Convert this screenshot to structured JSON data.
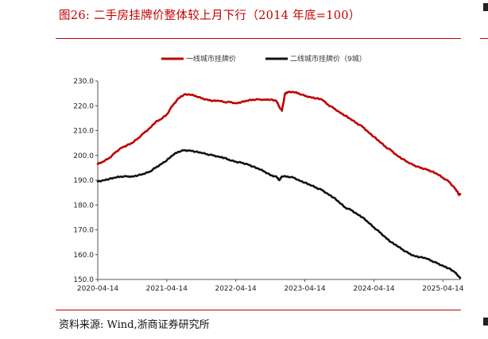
{
  "figure": {
    "title": "图26:    二手房挂牌价整体较上月下行（2014 年底=100）",
    "source": "资料来源:  Wind,浙商证券研究所"
  },
  "chart_data": {
    "type": "line",
    "title": "",
    "xlabel": "",
    "ylabel": "",
    "ylim": [
      150,
      230
    ],
    "yticks": [
      "150.0",
      "160.0",
      "170.0",
      "180.0",
      "190.0",
      "200.0",
      "210.0",
      "220.0",
      "230.0"
    ],
    "x_range": [
      "2020-04-14",
      "2025-07-14"
    ],
    "xticks": [
      "2020-04-14",
      "2021-04-14",
      "2022-04-14",
      "2023-04-14",
      "2024-04-14",
      "2025-04-14"
    ],
    "grid": false,
    "legend_position": "top",
    "series": [
      {
        "name": "一线城市挂牌价",
        "color": "#c00000",
        "points": [
          [
            "2020-04-14",
            196.5
          ],
          [
            "2020-05-14",
            197.5
          ],
          [
            "2020-06-14",
            199.0
          ],
          [
            "2020-07-14",
            201.0
          ],
          [
            "2020-08-14",
            203.0
          ],
          [
            "2020-09-14",
            204.0
          ],
          [
            "2020-10-14",
            205.0
          ],
          [
            "2020-11-14",
            207.0
          ],
          [
            "2020-12-14",
            209.0
          ],
          [
            "2021-01-14",
            211.0
          ],
          [
            "2021-02-14",
            213.5
          ],
          [
            "2021-03-14",
            214.5
          ],
          [
            "2021-04-14",
            216.5
          ],
          [
            "2021-05-14",
            220.0
          ],
          [
            "2021-06-14",
            223.0
          ],
          [
            "2021-07-14",
            224.5
          ],
          [
            "2021-08-14",
            224.5
          ],
          [
            "2021-09-14",
            224.0
          ],
          [
            "2021-10-14",
            223.0
          ],
          [
            "2021-11-14",
            222.5
          ],
          [
            "2021-12-14",
            222.0
          ],
          [
            "2022-01-14",
            222.0
          ],
          [
            "2022-02-14",
            221.5
          ],
          [
            "2022-03-14",
            221.5
          ],
          [
            "2022-04-14",
            221.0
          ],
          [
            "2022-05-14",
            221.5
          ],
          [
            "2022-06-14",
            222.0
          ],
          [
            "2022-07-14",
            222.5
          ],
          [
            "2022-08-14",
            222.5
          ],
          [
            "2022-09-14",
            222.5
          ],
          [
            "2022-10-14",
            222.5
          ],
          [
            "2022-11-14",
            222.0
          ],
          [
            "2022-12-01",
            219.5
          ],
          [
            "2022-12-14",
            218.0
          ],
          [
            "2022-12-31",
            225.0
          ],
          [
            "2023-01-14",
            225.5
          ],
          [
            "2023-02-14",
            225.5
          ],
          [
            "2023-03-14",
            225.0
          ],
          [
            "2023-04-14",
            224.0
          ],
          [
            "2023-05-14",
            223.5
          ],
          [
            "2023-06-14",
            223.0
          ],
          [
            "2023-07-14",
            222.5
          ],
          [
            "2023-08-14",
            220.5
          ],
          [
            "2023-09-14",
            219.0
          ],
          [
            "2023-10-14",
            217.5
          ],
          [
            "2023-11-14",
            216.0
          ],
          [
            "2023-12-14",
            214.5
          ],
          [
            "2024-01-14",
            213.0
          ],
          [
            "2024-02-14",
            211.5
          ],
          [
            "2024-03-14",
            209.5
          ],
          [
            "2024-04-14",
            207.5
          ],
          [
            "2024-05-14",
            205.5
          ],
          [
            "2024-06-14",
            203.5
          ],
          [
            "2024-07-14",
            202.0
          ],
          [
            "2024-08-14",
            200.0
          ],
          [
            "2024-09-14",
            198.5
          ],
          [
            "2024-10-14",
            197.0
          ],
          [
            "2024-11-14",
            196.0
          ],
          [
            "2024-12-14",
            195.0
          ],
          [
            "2025-01-14",
            194.5
          ],
          [
            "2025-02-14",
            193.5
          ],
          [
            "2025-03-14",
            192.5
          ],
          [
            "2025-04-14",
            191.0
          ],
          [
            "2025-05-14",
            189.5
          ],
          [
            "2025-06-14",
            187.0
          ],
          [
            "2025-06-28",
            185.5
          ],
          [
            "2025-07-08",
            184.0
          ],
          [
            "2025-07-14",
            184.5
          ]
        ]
      },
      {
        "name": "二线城市挂牌价（9城）",
        "color": "#111111",
        "points": [
          [
            "2020-04-14",
            189.5
          ],
          [
            "2020-05-14",
            190.0
          ],
          [
            "2020-06-14",
            190.5
          ],
          [
            "2020-07-14",
            191.0
          ],
          [
            "2020-08-14",
            191.5
          ],
          [
            "2020-09-14",
            191.5
          ],
          [
            "2020-10-14",
            191.5
          ],
          [
            "2020-11-14",
            192.0
          ],
          [
            "2020-12-14",
            192.5
          ],
          [
            "2021-01-14",
            193.5
          ],
          [
            "2021-02-14",
            195.0
          ],
          [
            "2021-03-14",
            196.5
          ],
          [
            "2021-04-14",
            198.0
          ],
          [
            "2021-05-14",
            200.0
          ],
          [
            "2021-06-14",
            201.5
          ],
          [
            "2021-07-14",
            202.0
          ],
          [
            "2021-08-14",
            202.0
          ],
          [
            "2021-09-14",
            201.5
          ],
          [
            "2021-10-14",
            201.0
          ],
          [
            "2021-11-14",
            200.5
          ],
          [
            "2021-12-14",
            200.0
          ],
          [
            "2022-01-14",
            199.5
          ],
          [
            "2022-02-14",
            199.0
          ],
          [
            "2022-03-14",
            198.0
          ],
          [
            "2022-04-14",
            197.5
          ],
          [
            "2022-05-14",
            197.0
          ],
          [
            "2022-06-14",
            196.5
          ],
          [
            "2022-07-14",
            195.5
          ],
          [
            "2022-08-14",
            194.5
          ],
          [
            "2022-09-14",
            193.5
          ],
          [
            "2022-10-14",
            192.0
          ],
          [
            "2022-11-14",
            191.5
          ],
          [
            "2022-12-01",
            190.0
          ],
          [
            "2022-12-14",
            191.5
          ],
          [
            "2023-01-14",
            191.5
          ],
          [
            "2023-02-14",
            191.0
          ],
          [
            "2023-03-14",
            190.0
          ],
          [
            "2023-04-14",
            189.0
          ],
          [
            "2023-05-14",
            188.0
          ],
          [
            "2023-06-14",
            187.0
          ],
          [
            "2023-07-14",
            186.0
          ],
          [
            "2023-08-14",
            184.5
          ],
          [
            "2023-09-14",
            183.0
          ],
          [
            "2023-10-14",
            181.0
          ],
          [
            "2023-11-14",
            179.0
          ],
          [
            "2023-12-14",
            178.0
          ],
          [
            "2024-01-14",
            176.5
          ],
          [
            "2024-02-14",
            175.0
          ],
          [
            "2024-03-14",
            173.0
          ],
          [
            "2024-04-14",
            171.0
          ],
          [
            "2024-05-14",
            169.0
          ],
          [
            "2024-06-14",
            167.0
          ],
          [
            "2024-07-14",
            165.0
          ],
          [
            "2024-08-14",
            163.5
          ],
          [
            "2024-09-14",
            162.0
          ],
          [
            "2024-10-14",
            160.5
          ],
          [
            "2024-11-14",
            159.5
          ],
          [
            "2024-12-14",
            159.0
          ],
          [
            "2025-01-14",
            158.5
          ],
          [
            "2025-02-14",
            157.5
          ],
          [
            "2025-03-14",
            156.5
          ],
          [
            "2025-04-14",
            155.5
          ],
          [
            "2025-05-14",
            154.5
          ],
          [
            "2025-06-14",
            153.0
          ],
          [
            "2025-06-28",
            152.0
          ],
          [
            "2025-07-14",
            150.5
          ]
        ]
      }
    ]
  }
}
